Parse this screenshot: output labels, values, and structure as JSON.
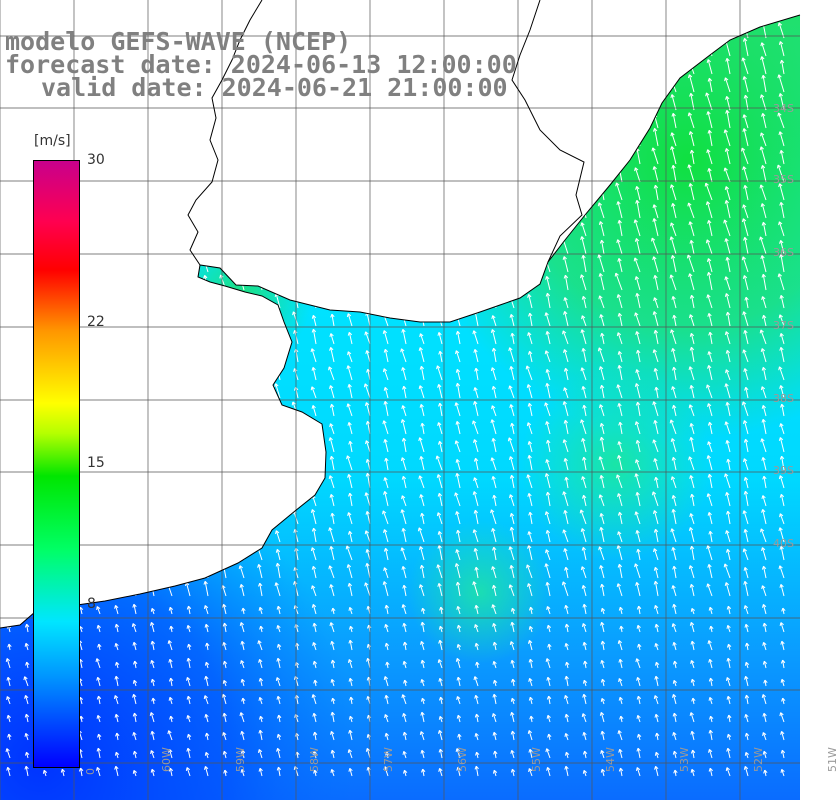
{
  "title": {
    "line1": "modelo GEFS-WAVE (NCEP)",
    "line2": "forecast date: 2024-06-13 12:00:00",
    "line3": "valid date: 2024-06-21 21:00:00"
  },
  "colorbar": {
    "unit": "[m/s]",
    "min": 0,
    "max": 30,
    "ticks": [
      "30",
      "22",
      "15",
      "8"
    ],
    "tick_values": [
      30,
      22,
      15,
      8
    ],
    "bottom_label": "0"
  },
  "lat_labels": [
    "34S",
    "35S",
    "36S",
    "37S",
    "38S",
    "39S",
    "40S"
  ],
  "lon_labels": [
    "60W",
    "59W",
    "58W",
    "57W",
    "56W",
    "55W",
    "54W",
    "53W",
    "52W",
    "51W"
  ],
  "colors": {
    "ocean_strong": "#22dd55",
    "ocean_mid": "#00e8ff",
    "ocean_low": "#0099ff",
    "ocean_min": "#0033ff",
    "land": "#ffffff",
    "coast": "#000000",
    "grid": "#555555",
    "vector": "#ffffff"
  },
  "map_layers": [
    "wind-speed-field",
    "wind-vectors",
    "coastline",
    "lat-lon-grid"
  ]
}
